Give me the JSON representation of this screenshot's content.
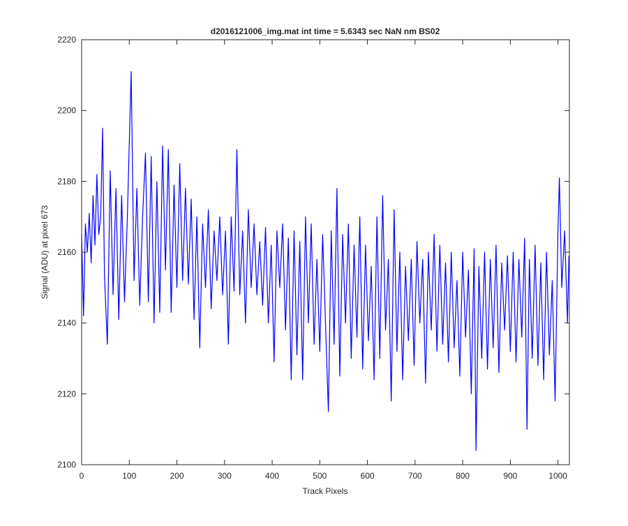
{
  "chart_data": {
    "type": "line",
    "title": "d2016121006_img.mat int time = 5.6343 sec  NaN nm BS02",
    "x_label": "Track Pixels",
    "y_label": "Signal (ADU) at pixel 673",
    "xlim": [
      0,
      1024
    ],
    "ylim": [
      2100,
      2220
    ],
    "xticks": [
      0,
      100,
      200,
      300,
      400,
      500,
      600,
      700,
      800,
      900,
      1000
    ],
    "yticks": [
      2100,
      2120,
      2140,
      2160,
      2180,
      2200,
      2220
    ],
    "x": [
      0,
      4,
      8,
      12,
      16,
      20,
      24,
      28,
      32,
      36,
      40,
      44,
      48,
      54,
      60,
      66,
      72,
      78,
      84,
      90,
      96,
      104,
      110,
      116,
      122,
      128,
      134,
      140,
      146,
      152,
      158,
      164,
      170,
      176,
      182,
      188,
      194,
      200,
      206,
      212,
      218,
      224,
      230,
      236,
      242,
      248,
      254,
      260,
      266,
      272,
      278,
      284,
      290,
      296,
      302,
      308,
      314,
      320,
      326,
      332,
      338,
      344,
      350,
      356,
      362,
      368,
      374,
      380,
      386,
      392,
      398,
      404,
      410,
      416,
      422,
      428,
      434,
      440,
      446,
      452,
      458,
      464,
      470,
      476,
      482,
      488,
      494,
      500,
      506,
      512,
      518,
      524,
      530,
      536,
      542,
      548,
      554,
      560,
      566,
      572,
      578,
      584,
      590,
      596,
      602,
      608,
      614,
      620,
      626,
      632,
      638,
      644,
      650,
      656,
      662,
      668,
      674,
      680,
      686,
      692,
      698,
      704,
      710,
      716,
      722,
      728,
      734,
      740,
      746,
      752,
      758,
      764,
      770,
      776,
      782,
      788,
      794,
      800,
      806,
      812,
      818,
      824,
      828,
      834,
      840,
      846,
      852,
      858,
      864,
      870,
      876,
      882,
      888,
      894,
      900,
      906,
      912,
      918,
      924,
      930,
      935,
      940,
      946,
      952,
      958,
      964,
      970,
      976,
      982,
      988,
      994,
      1000,
      1003,
      1008,
      1014,
      1020,
      1023
    ],
    "series": [
      {
        "color": "#0000ff",
        "values": [
          2165,
          2142,
          2168,
          2160,
          2171,
          2157,
          2176,
          2162,
          2182,
          2165,
          2170,
          2195,
          2153,
          2134,
          2183,
          2148,
          2178,
          2141,
          2176,
          2146,
          2170,
          2211,
          2152,
          2178,
          2145,
          2170,
          2188,
          2146,
          2187,
          2140,
          2180,
          2143,
          2190,
          2155,
          2189,
          2143,
          2179,
          2150,
          2185,
          2152,
          2178,
          2151,
          2175,
          2141,
          2170,
          2133,
          2168,
          2150,
          2172,
          2144,
          2166,
          2152,
          2170,
          2148,
          2166,
          2134,
          2170,
          2149,
          2189,
          2148,
          2166,
          2140,
          2172,
          2150,
          2168,
          2148,
          2163,
          2145,
          2167,
          2140,
          2162,
          2129,
          2166,
          2150,
          2168,
          2138,
          2164,
          2124,
          2166,
          2131,
          2163,
          2124,
          2170,
          2140,
          2168,
          2134,
          2158,
          2132,
          2165,
          2140,
          2115,
          2166,
          2134,
          2178,
          2125,
          2165,
          2140,
          2168,
          2130,
          2162,
          2136,
          2170,
          2127,
          2162,
          2135,
          2156,
          2124,
          2170,
          2130,
          2176,
          2138,
          2158,
          2118,
          2172,
          2132,
          2160,
          2124,
          2156,
          2135,
          2158,
          2128,
          2163,
          2140,
          2158,
          2123,
          2160,
          2138,
          2165,
          2132,
          2162,
          2134,
          2157,
          2129,
          2160,
          2133,
          2152,
          2125,
          2160,
          2136,
          2155,
          2120,
          2161,
          2104,
          2156,
          2130,
          2160,
          2127,
          2158,
          2133,
          2162,
          2126,
          2157,
          2138,
          2159,
          2132,
          2160,
          2129,
          2158,
          2136,
          2164,
          2110,
          2158,
          2130,
          2162,
          2128,
          2157,
          2124,
          2160,
          2131,
          2152,
          2118,
          2166,
          2181,
          2150,
          2166,
          2140,
          2159
        ]
      }
    ]
  }
}
